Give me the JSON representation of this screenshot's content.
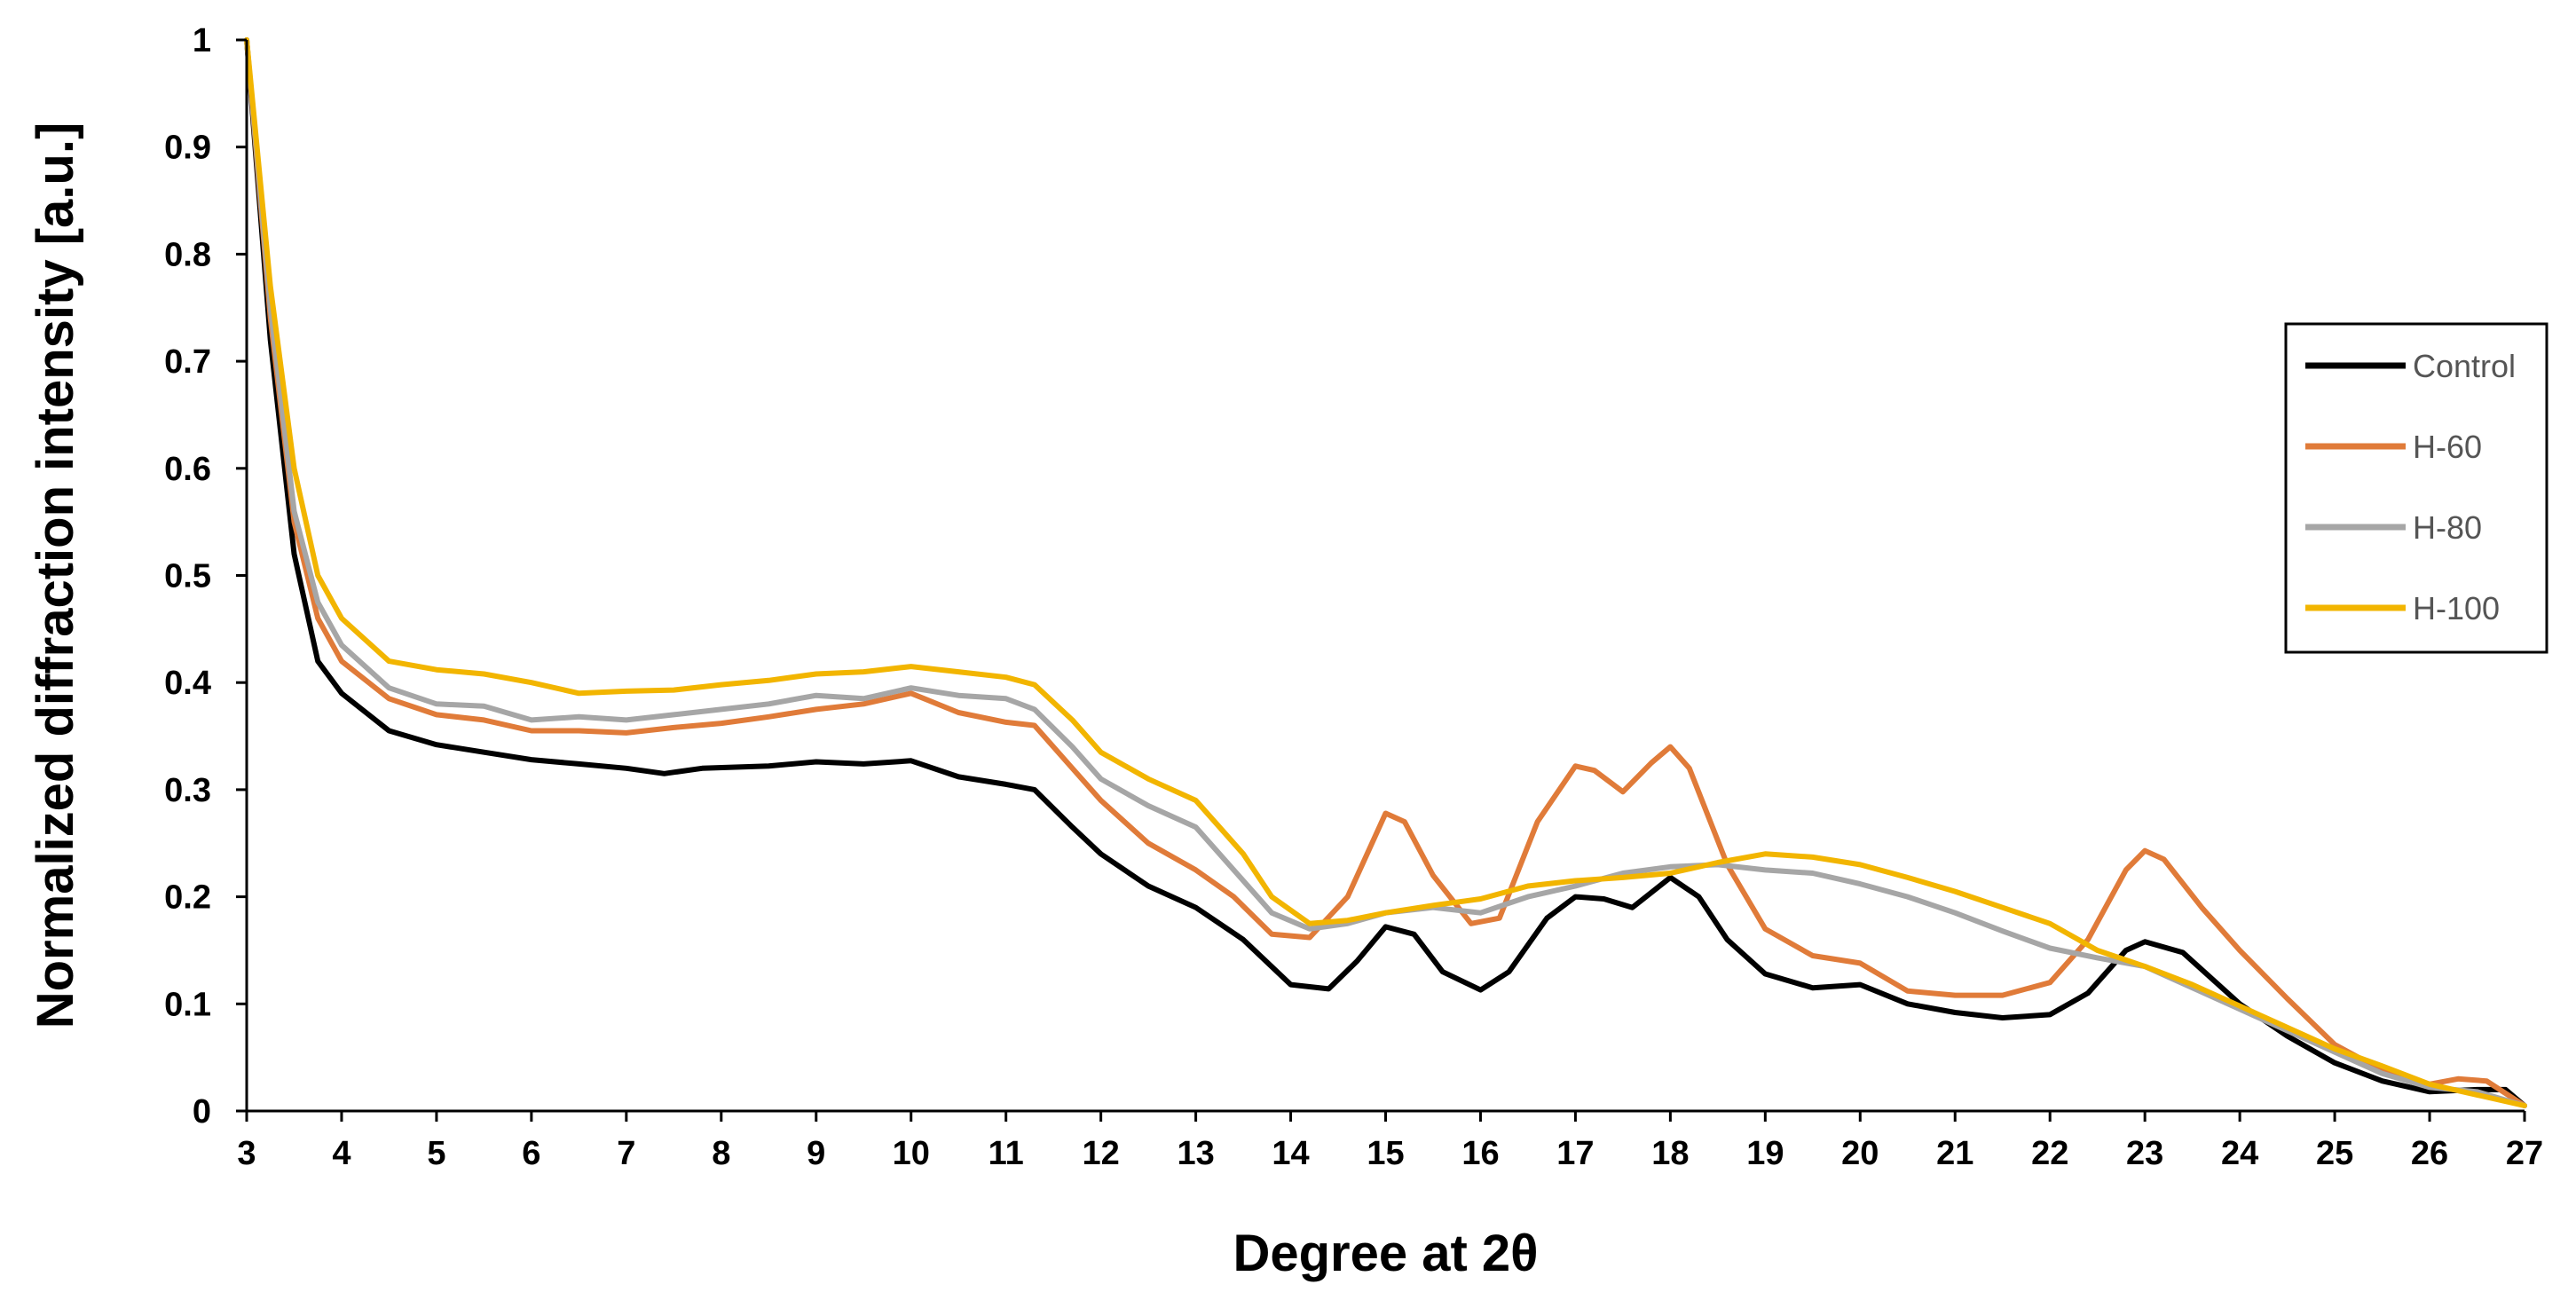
{
  "chart_data": {
    "type": "line",
    "title": "",
    "xlabel": "Degree at 2θ",
    "ylabel": "Normalized diffraction intensity [a.u.]",
    "xlim": [
      3,
      27
    ],
    "ylim": [
      0,
      1
    ],
    "x_ticks": [
      3,
      4,
      5,
      6,
      7,
      8,
      9,
      10,
      11,
      12,
      13,
      14,
      15,
      16,
      17,
      18,
      19,
      20,
      21,
      22,
      23,
      24,
      25,
      26,
      27
    ],
    "y_ticks": [
      "0",
      "0.1",
      "0.2",
      "0.3",
      "0.4",
      "0.5",
      "0.6",
      "0.7",
      "0.8",
      "0.9",
      "1"
    ],
    "grid": false,
    "legend_position": "right",
    "series": [
      {
        "name": "Control",
        "color": "#000000",
        "points": [
          [
            3,
            1.0
          ],
          [
            3.25,
            0.72
          ],
          [
            3.5,
            0.52
          ],
          [
            3.75,
            0.42
          ],
          [
            4,
            0.39
          ],
          [
            4.5,
            0.355
          ],
          [
            5,
            0.342
          ],
          [
            5.5,
            0.335
          ],
          [
            6,
            0.328
          ],
          [
            6.5,
            0.324
          ],
          [
            7,
            0.32
          ],
          [
            7.4,
            0.315
          ],
          [
            7.8,
            0.32
          ],
          [
            8.5,
            0.322
          ],
          [
            9,
            0.326
          ],
          [
            9.5,
            0.324
          ],
          [
            10,
            0.327
          ],
          [
            10.5,
            0.312
          ],
          [
            11,
            0.305
          ],
          [
            11.3,
            0.3
          ],
          [
            11.7,
            0.265
          ],
          [
            12,
            0.24
          ],
          [
            12.5,
            0.21
          ],
          [
            13,
            0.19
          ],
          [
            13.5,
            0.16
          ],
          [
            14,
            0.118
          ],
          [
            14.4,
            0.114
          ],
          [
            14.7,
            0.14
          ],
          [
            15,
            0.172
          ],
          [
            15.3,
            0.165
          ],
          [
            15.6,
            0.13
          ],
          [
            16,
            0.113
          ],
          [
            16.3,
            0.13
          ],
          [
            16.7,
            0.18
          ],
          [
            17,
            0.2
          ],
          [
            17.3,
            0.198
          ],
          [
            17.6,
            0.19
          ],
          [
            18,
            0.218
          ],
          [
            18.3,
            0.2
          ],
          [
            18.6,
            0.16
          ],
          [
            19,
            0.128
          ],
          [
            19.5,
            0.115
          ],
          [
            20,
            0.118
          ],
          [
            20.5,
            0.1
          ],
          [
            21,
            0.092
          ],
          [
            21.5,
            0.087
          ],
          [
            22,
            0.09
          ],
          [
            22.4,
            0.11
          ],
          [
            22.8,
            0.15
          ],
          [
            23,
            0.158
          ],
          [
            23.4,
            0.148
          ],
          [
            24,
            0.1
          ],
          [
            24.5,
            0.07
          ],
          [
            25,
            0.045
          ],
          [
            25.5,
            0.028
          ],
          [
            26,
            0.018
          ],
          [
            26.5,
            0.02
          ],
          [
            26.8,
            0.02
          ],
          [
            27,
            0.005
          ]
        ]
      },
      {
        "name": "H-60",
        "color": "#e07b39",
        "points": [
          [
            3,
            1.0
          ],
          [
            3.25,
            0.74
          ],
          [
            3.5,
            0.55
          ],
          [
            3.75,
            0.46
          ],
          [
            4,
            0.42
          ],
          [
            4.5,
            0.385
          ],
          [
            5,
            0.37
          ],
          [
            5.5,
            0.365
          ],
          [
            6,
            0.355
          ],
          [
            6.5,
            0.355
          ],
          [
            7,
            0.353
          ],
          [
            7.5,
            0.358
          ],
          [
            8,
            0.362
          ],
          [
            8.5,
            0.368
          ],
          [
            9,
            0.375
          ],
          [
            9.5,
            0.38
          ],
          [
            10,
            0.39
          ],
          [
            10.5,
            0.372
          ],
          [
            11,
            0.363
          ],
          [
            11.3,
            0.36
          ],
          [
            11.7,
            0.32
          ],
          [
            12,
            0.29
          ],
          [
            12.5,
            0.25
          ],
          [
            13,
            0.225
          ],
          [
            13.4,
            0.2
          ],
          [
            13.8,
            0.165
          ],
          [
            14.2,
            0.162
          ],
          [
            14.6,
            0.2
          ],
          [
            15,
            0.278
          ],
          [
            15.2,
            0.27
          ],
          [
            15.5,
            0.22
          ],
          [
            15.9,
            0.175
          ],
          [
            16.2,
            0.18
          ],
          [
            16.6,
            0.27
          ],
          [
            17,
            0.322
          ],
          [
            17.2,
            0.318
          ],
          [
            17.5,
            0.298
          ],
          [
            17.8,
            0.325
          ],
          [
            18,
            0.34
          ],
          [
            18.2,
            0.32
          ],
          [
            18.6,
            0.23
          ],
          [
            19,
            0.17
          ],
          [
            19.5,
            0.145
          ],
          [
            20,
            0.138
          ],
          [
            20.5,
            0.112
          ],
          [
            21,
            0.108
          ],
          [
            21.5,
            0.108
          ],
          [
            22,
            0.12
          ],
          [
            22.4,
            0.16
          ],
          [
            22.8,
            0.225
          ],
          [
            23,
            0.243
          ],
          [
            23.2,
            0.235
          ],
          [
            23.6,
            0.19
          ],
          [
            24,
            0.15
          ],
          [
            24.5,
            0.105
          ],
          [
            25,
            0.062
          ],
          [
            25.5,
            0.038
          ],
          [
            26,
            0.025
          ],
          [
            26.3,
            0.03
          ],
          [
            26.6,
            0.028
          ],
          [
            27,
            0.005
          ]
        ]
      },
      {
        "name": "H-80",
        "color": "#a6a6a6",
        "points": [
          [
            3,
            1.0
          ],
          [
            3.25,
            0.75
          ],
          [
            3.5,
            0.56
          ],
          [
            3.75,
            0.475
          ],
          [
            4,
            0.435
          ],
          [
            4.5,
            0.395
          ],
          [
            5,
            0.38
          ],
          [
            5.5,
            0.378
          ],
          [
            6,
            0.365
          ],
          [
            6.5,
            0.368
          ],
          [
            7,
            0.365
          ],
          [
            7.5,
            0.37
          ],
          [
            8,
            0.375
          ],
          [
            8.5,
            0.38
          ],
          [
            9,
            0.388
          ],
          [
            9.5,
            0.385
          ],
          [
            10,
            0.395
          ],
          [
            10.5,
            0.388
          ],
          [
            11,
            0.385
          ],
          [
            11.3,
            0.375
          ],
          [
            11.7,
            0.34
          ],
          [
            12,
            0.31
          ],
          [
            12.5,
            0.285
          ],
          [
            13,
            0.265
          ],
          [
            13.5,
            0.215
          ],
          [
            13.8,
            0.185
          ],
          [
            14.2,
            0.17
          ],
          [
            14.6,
            0.175
          ],
          [
            15,
            0.185
          ],
          [
            15.5,
            0.19
          ],
          [
            16,
            0.185
          ],
          [
            16.5,
            0.2
          ],
          [
            17,
            0.21
          ],
          [
            17.5,
            0.222
          ],
          [
            18,
            0.228
          ],
          [
            18.5,
            0.23
          ],
          [
            19,
            0.225
          ],
          [
            19.5,
            0.222
          ],
          [
            20,
            0.212
          ],
          [
            20.5,
            0.2
          ],
          [
            21,
            0.185
          ],
          [
            21.5,
            0.168
          ],
          [
            22,
            0.152
          ],
          [
            22.5,
            0.143
          ],
          [
            23,
            0.135
          ],
          [
            23.5,
            0.115
          ],
          [
            24,
            0.095
          ],
          [
            24.5,
            0.075
          ],
          [
            25,
            0.055
          ],
          [
            25.5,
            0.035
          ],
          [
            26,
            0.022
          ],
          [
            26.5,
            0.018
          ],
          [
            27,
            0.005
          ]
        ]
      },
      {
        "name": "H-100",
        "color": "#f2b500",
        "points": [
          [
            3,
            1.0
          ],
          [
            3.25,
            0.77
          ],
          [
            3.5,
            0.6
          ],
          [
            3.75,
            0.5
          ],
          [
            4,
            0.46
          ],
          [
            4.5,
            0.42
          ],
          [
            5,
            0.412
          ],
          [
            5.5,
            0.408
          ],
          [
            6,
            0.4
          ],
          [
            6.5,
            0.39
          ],
          [
            7,
            0.392
          ],
          [
            7.5,
            0.393
          ],
          [
            8,
            0.398
          ],
          [
            8.5,
            0.402
          ],
          [
            9,
            0.408
          ],
          [
            9.5,
            0.41
          ],
          [
            10,
            0.415
          ],
          [
            10.5,
            0.41
          ],
          [
            11,
            0.405
          ],
          [
            11.3,
            0.398
          ],
          [
            11.7,
            0.365
          ],
          [
            12,
            0.335
          ],
          [
            12.5,
            0.31
          ],
          [
            13,
            0.29
          ],
          [
            13.5,
            0.24
          ],
          [
            13.8,
            0.2
          ],
          [
            14.2,
            0.175
          ],
          [
            14.6,
            0.178
          ],
          [
            15,
            0.185
          ],
          [
            15.5,
            0.192
          ],
          [
            16,
            0.198
          ],
          [
            16.5,
            0.21
          ],
          [
            17,
            0.215
          ],
          [
            17.5,
            0.218
          ],
          [
            18,
            0.222
          ],
          [
            18.5,
            0.232
          ],
          [
            19,
            0.24
          ],
          [
            19.5,
            0.237
          ],
          [
            20,
            0.23
          ],
          [
            20.5,
            0.218
          ],
          [
            21,
            0.205
          ],
          [
            21.5,
            0.19
          ],
          [
            22,
            0.175
          ],
          [
            22.5,
            0.15
          ],
          [
            23,
            0.135
          ],
          [
            23.5,
            0.118
          ],
          [
            24,
            0.098
          ],
          [
            24.5,
            0.078
          ],
          [
            25,
            0.058
          ],
          [
            25.5,
            0.042
          ],
          [
            26,
            0.025
          ],
          [
            26.5,
            0.015
          ],
          [
            27,
            0.005
          ]
        ]
      }
    ]
  }
}
